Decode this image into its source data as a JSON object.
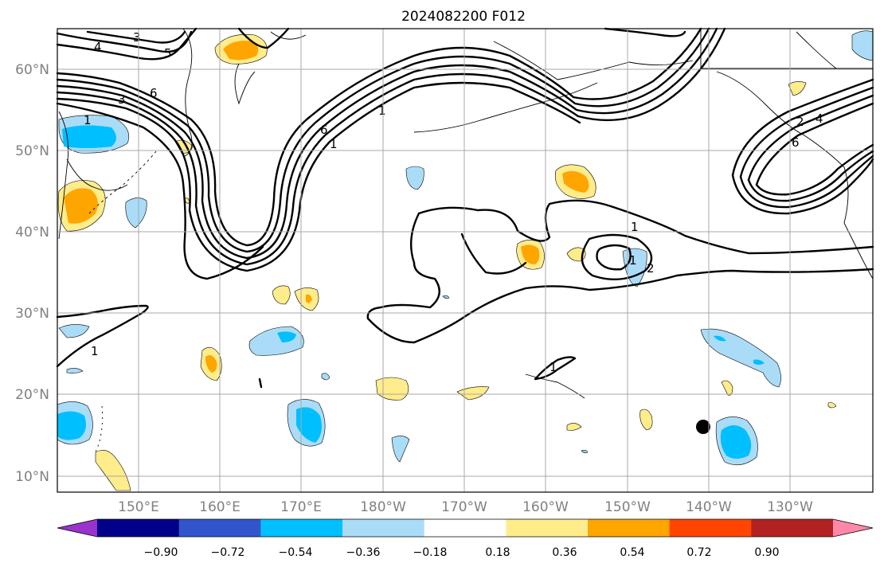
{
  "title": "2024082200 F012",
  "lat_labels": [
    "60°N",
    "50°N",
    "40°N",
    "30°N",
    "20°N",
    "10°N"
  ],
  "lon_labels": [
    "150°E",
    "160°E",
    "170°E",
    "180°W",
    "170°W",
    "160°W",
    "150°W",
    "140°W",
    "130°W"
  ],
  "colorbar": {
    "ticks": [
      "−0.90",
      "−0.72",
      "−0.54",
      "−0.36",
      "−0.18",
      "0.18",
      "0.36",
      "0.54",
      "0.72",
      "0.90"
    ],
    "colors": [
      "#9933cc",
      "#000088",
      "#3355cc",
      "#00bfff",
      "#aadcf8",
      "#ffffff",
      "#ffec8b",
      "#ffa500",
      "#ff4500",
      "#b22222",
      "#ff88aa"
    ]
  },
  "contour_labels": [
    "4",
    "3",
    "5",
    "6",
    "3",
    "1",
    "1",
    "6",
    "1",
    "1",
    "1",
    "2",
    "1",
    "1",
    "4",
    "6",
    "2"
  ],
  "marker": "storm-position-dot"
}
